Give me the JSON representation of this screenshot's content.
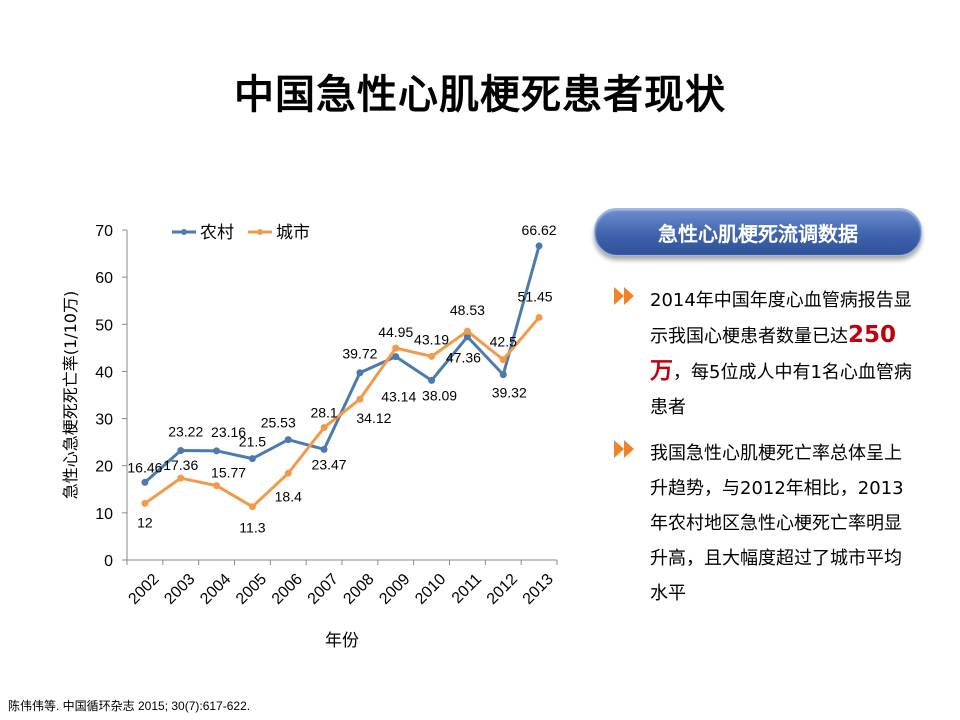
{
  "title": "中国急性心肌梗死患者现状",
  "panel": {
    "header": "急性心肌梗死流调数据",
    "bullet1": {
      "pre": "2014年中国年度心血管病报告显示我国心梗患者数量已达",
      "highlight": "250万",
      "post": "，每5位成人中有1名心血管病患者"
    },
    "bullet2": "我国急性心肌梗死亡率总体呈上升趋势，与2012年相比，2013年农村地区急性心梗死亡率明显升高，且大幅度超过了城市平均水平"
  },
  "citation": "陈伟伟等. 中国循环杂志 2015; 30(7):617-622.",
  "colors": {
    "rural": "#4a7ab0",
    "urban": "#f29a4a",
    "accent": "#c0000b",
    "arrow": "#f0822a"
  },
  "chart_data": {
    "type": "line",
    "categories": [
      "2002",
      "2003",
      "2004",
      "2005",
      "2006",
      "2007",
      "2008",
      "2009",
      "2010",
      "2011",
      "2012",
      "2013"
    ],
    "series": [
      {
        "name": "农村",
        "values": [
          16.46,
          23.22,
          23.16,
          21.5,
          25.53,
          23.47,
          39.72,
          43.14,
          38.09,
          47.36,
          39.32,
          66.62
        ]
      },
      {
        "name": "城市",
        "values": [
          12,
          17.36,
          15.77,
          11.3,
          18.4,
          28.1,
          34.12,
          44.95,
          43.19,
          48.53,
          42.5,
          51.45
        ]
      }
    ],
    "xlabel": "年份",
    "ylabel": "急性心急梗死死亡率(1/10万)",
    "ylim": [
      0,
      70
    ],
    "yticks": [
      0,
      10,
      20,
      30,
      40,
      50,
      60,
      70
    ],
    "legend": "top-left"
  }
}
